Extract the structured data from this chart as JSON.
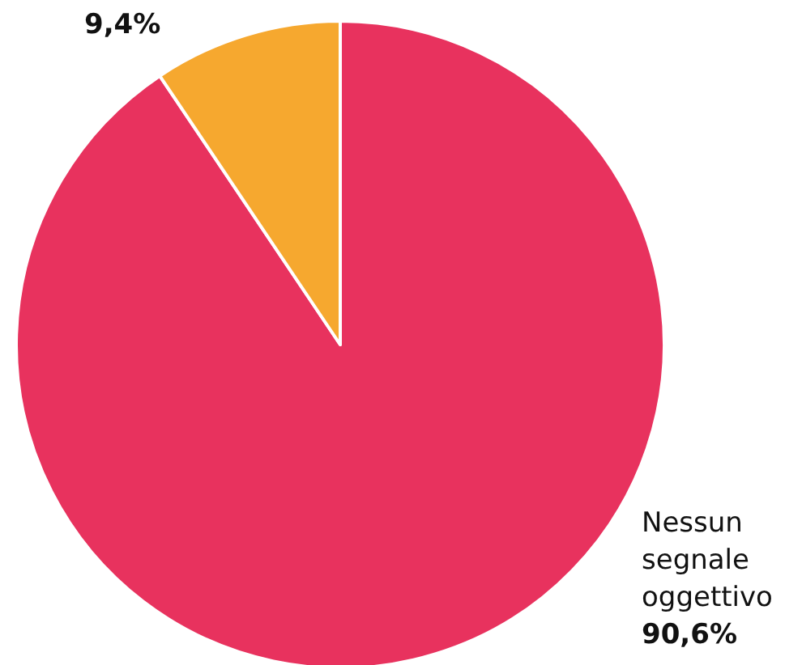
{
  "chart_data": {
    "type": "pie",
    "categories": [
      "Nessun segnale oggettivo",
      null
    ],
    "values": [
      90.6,
      9.4
    ],
    "value_labels": [
      "90,6%",
      "9,4%"
    ],
    "colors": [
      "#e8325e",
      "#f6a82f"
    ],
    "legend": false
  }
}
